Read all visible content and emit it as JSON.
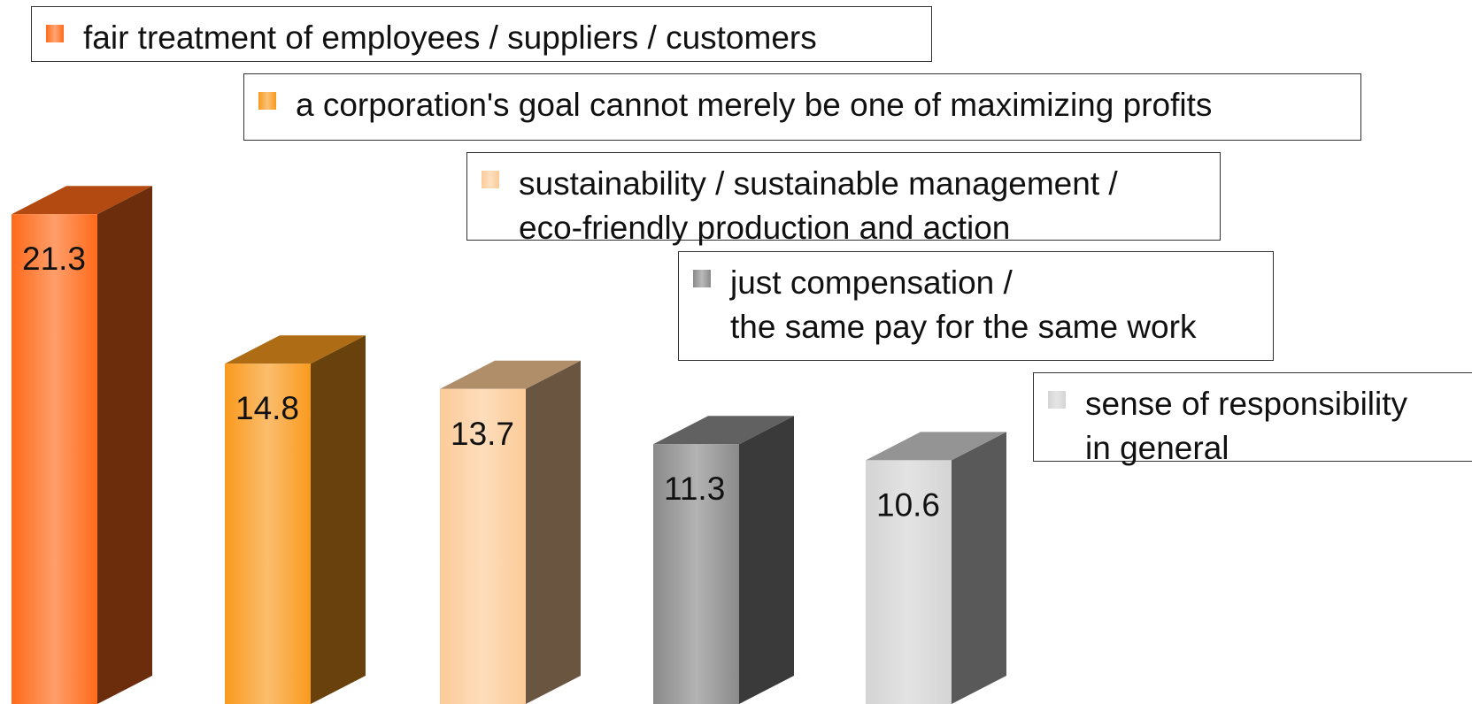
{
  "chart_data": {
    "type": "bar3d",
    "ylim": [
      0,
      30
    ],
    "series": [
      {
        "name": "fair treatment of employees / suppliers / customers",
        "color": "#ff6a1a",
        "values": [
          21.3
        ]
      },
      {
        "name": "a corporation's goal cannot merely be one of maximizing profits",
        "color": "#f99a1e",
        "values": [
          14.8
        ]
      },
      {
        "name": "sustainability / sustainable management /\neco-friendly production and action",
        "color": "#fccb98",
        "values": [
          13.7
        ]
      },
      {
        "name": "just compensation /\nthe same pay for the same work",
        "color": "#8a8a8a",
        "values": [
          11.3
        ]
      },
      {
        "name": "sense of responsibility\nin general",
        "color": "#d4d4d4",
        "values": [
          10.6
        ]
      }
    ]
  }
}
